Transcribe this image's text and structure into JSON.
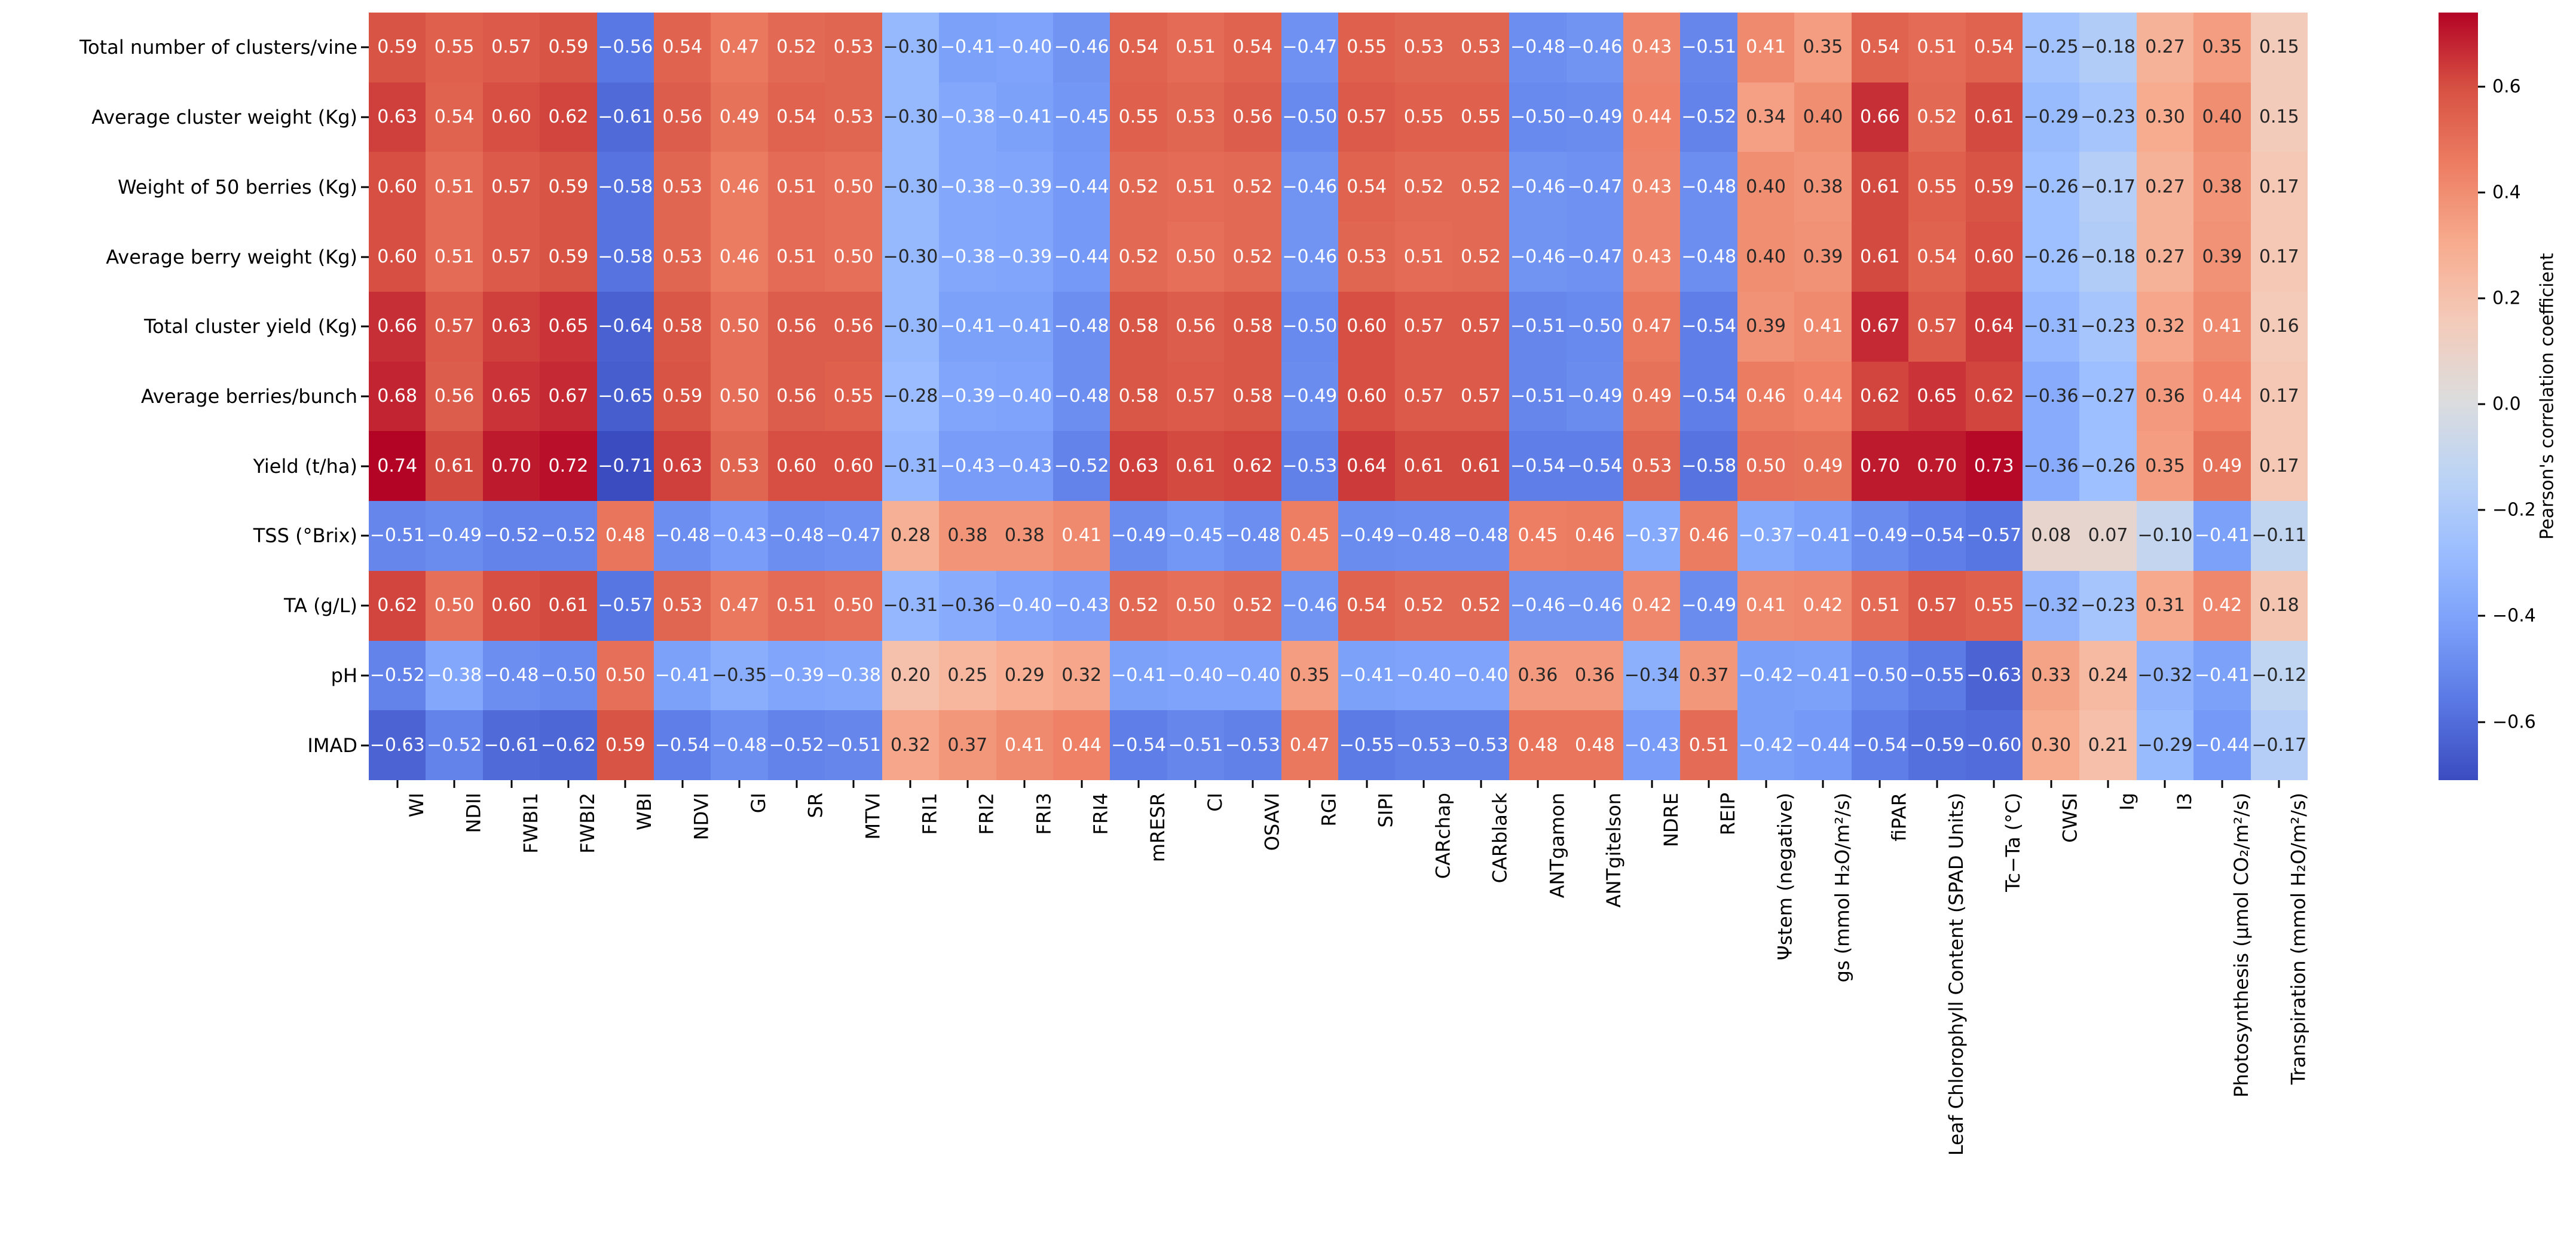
{
  "chart_data": {
    "type": "heatmap",
    "title": "",
    "rows": [
      "Total number of clusters/vine",
      "Average cluster weight (Kg)",
      "Weight of 50 berries (Kg)",
      "Average berry weight (Kg)",
      "Total cluster yield (Kg)",
      "Average berries/bunch",
      "Yield (t/ha)",
      "TSS (°Brix)",
      "TA (g/L)",
      "pH",
      "IMAD"
    ],
    "columns": [
      "WI",
      "NDII",
      "FWBI1",
      "FWBI2",
      "WBI",
      "NDVI",
      "GI",
      "SR",
      "MTVI",
      "FRI1",
      "FRI2",
      "FRI3",
      "FRI4",
      "mRESR",
      "CI",
      "OSAVI",
      "RGI",
      "SIPI",
      "CARchap",
      "CARblack",
      "ANTgamon",
      "ANTgitelson",
      "NDRE",
      "REIP",
      "Ψstem (negative)",
      "gs (mmol H₂O/m²/s)",
      "fiPAR",
      "Leaf Chlorophyll Content (SPAD Units)",
      "Tc−Ta (°C)",
      "CWSI",
      "Ig",
      "I3",
      "Photosynthesis (µmol CO₂/m²/s)",
      "Transpiration (mmol H₂O/m²/s)"
    ],
    "values": [
      [
        0.59,
        0.55,
        0.57,
        0.59,
        -0.56,
        0.54,
        0.47,
        0.52,
        0.53,
        -0.3,
        -0.41,
        -0.4,
        -0.46,
        0.54,
        0.51,
        0.54,
        -0.47,
        0.55,
        0.53,
        0.53,
        -0.48,
        -0.46,
        0.43,
        -0.51,
        0.41,
        0.35,
        0.54,
        0.51,
        0.54,
        -0.25,
        -0.18,
        0.27,
        0.35,
        0.15
      ],
      [
        0.63,
        0.54,
        0.6,
        0.62,
        -0.61,
        0.56,
        0.49,
        0.54,
        0.53,
        -0.3,
        -0.38,
        -0.41,
        -0.45,
        0.55,
        0.53,
        0.56,
        -0.5,
        0.57,
        0.55,
        0.55,
        -0.5,
        -0.49,
        0.44,
        -0.52,
        0.34,
        0.4,
        0.66,
        0.52,
        0.61,
        -0.29,
        -0.23,
        0.3,
        0.4,
        0.15
      ],
      [
        0.6,
        0.51,
        0.57,
        0.59,
        -0.58,
        0.53,
        0.46,
        0.51,
        0.5,
        -0.3,
        -0.38,
        -0.39,
        -0.44,
        0.52,
        0.51,
        0.52,
        -0.46,
        0.54,
        0.52,
        0.52,
        -0.46,
        -0.47,
        0.43,
        -0.48,
        0.4,
        0.38,
        0.61,
        0.55,
        0.59,
        -0.26,
        -0.17,
        0.27,
        0.38,
        0.17
      ],
      [
        0.6,
        0.51,
        0.57,
        0.59,
        -0.58,
        0.53,
        0.46,
        0.51,
        0.5,
        -0.3,
        -0.38,
        -0.39,
        -0.44,
        0.52,
        0.5,
        0.52,
        -0.46,
        0.53,
        0.51,
        0.52,
        -0.46,
        -0.47,
        0.43,
        -0.48,
        0.4,
        0.39,
        0.61,
        0.54,
        0.6,
        -0.26,
        -0.18,
        0.27,
        0.39,
        0.17
      ],
      [
        0.66,
        0.57,
        0.63,
        0.65,
        -0.64,
        0.58,
        0.5,
        0.56,
        0.56,
        -0.3,
        -0.41,
        -0.41,
        -0.48,
        0.58,
        0.56,
        0.58,
        -0.5,
        0.6,
        0.57,
        0.57,
        -0.51,
        -0.5,
        0.47,
        -0.54,
        0.39,
        0.41,
        0.67,
        0.57,
        0.64,
        -0.31,
        -0.23,
        0.32,
        0.41,
        0.16
      ],
      [
        0.68,
        0.56,
        0.65,
        0.67,
        -0.65,
        0.59,
        0.5,
        0.56,
        0.55,
        -0.28,
        -0.39,
        -0.4,
        -0.48,
        0.58,
        0.57,
        0.58,
        -0.49,
        0.6,
        0.57,
        0.57,
        -0.51,
        -0.49,
        0.49,
        -0.54,
        0.46,
        0.44,
        0.62,
        0.65,
        0.62,
        -0.36,
        -0.27,
        0.36,
        0.44,
        0.17
      ],
      [
        0.74,
        0.61,
        0.7,
        0.72,
        -0.71,
        0.63,
        0.53,
        0.6,
        0.6,
        -0.31,
        -0.43,
        -0.43,
        -0.52,
        0.63,
        0.61,
        0.62,
        -0.53,
        0.64,
        0.61,
        0.61,
        -0.54,
        -0.54,
        0.53,
        -0.58,
        0.5,
        0.49,
        0.7,
        0.7,
        0.73,
        -0.36,
        -0.26,
        0.35,
        0.49,
        0.17
      ],
      [
        -0.51,
        -0.49,
        -0.52,
        -0.52,
        0.48,
        -0.48,
        -0.43,
        -0.48,
        -0.47,
        0.28,
        0.38,
        0.38,
        0.41,
        -0.49,
        -0.45,
        -0.48,
        0.45,
        -0.49,
        -0.48,
        -0.48,
        0.45,
        0.46,
        -0.37,
        0.46,
        -0.37,
        -0.41,
        -0.49,
        -0.54,
        -0.57,
        0.08,
        0.07,
        -0.1,
        -0.41,
        -0.11
      ],
      [
        0.62,
        0.5,
        0.6,
        0.61,
        -0.57,
        0.53,
        0.47,
        0.51,
        0.5,
        -0.31,
        -0.36,
        -0.4,
        -0.43,
        0.52,
        0.5,
        0.52,
        -0.46,
        0.54,
        0.52,
        0.52,
        -0.46,
        -0.46,
        0.42,
        -0.49,
        0.41,
        0.42,
        0.51,
        0.57,
        0.55,
        -0.32,
        -0.23,
        0.31,
        0.42,
        0.18
      ],
      [
        -0.52,
        -0.38,
        -0.48,
        -0.5,
        0.5,
        -0.41,
        -0.35,
        -0.39,
        -0.38,
        0.2,
        0.25,
        0.29,
        0.32,
        -0.41,
        -0.4,
        -0.4,
        0.35,
        -0.41,
        -0.4,
        -0.4,
        0.36,
        0.36,
        -0.34,
        0.37,
        -0.42,
        -0.41,
        -0.5,
        -0.55,
        -0.63,
        0.33,
        0.24,
        -0.32,
        -0.41,
        -0.12
      ],
      [
        -0.63,
        -0.52,
        -0.61,
        -0.62,
        0.59,
        -0.54,
        -0.48,
        -0.52,
        -0.51,
        0.32,
        0.37,
        0.41,
        0.44,
        -0.54,
        -0.51,
        -0.53,
        0.47,
        -0.55,
        -0.53,
        -0.53,
        0.48,
        0.48,
        -0.43,
        0.51,
        -0.42,
        -0.44,
        -0.54,
        -0.59,
        -0.6,
        0.3,
        0.21,
        -0.29,
        -0.44,
        -0.17
      ]
    ],
    "value_format": "two decimals, unicode minus",
    "colormap": {
      "name": "coolwarm",
      "anchors": [
        "#3b4cc0",
        "#5977e3",
        "#7a9ff9",
        "#9cbeff",
        "#bdd4f4",
        "#dddcdc",
        "#f4cab8",
        "#f7ab8e",
        "#ed7e63",
        "#d75243",
        "#b40426"
      ]
    },
    "annotation_text_colors": {
      "dark": "#262626",
      "light": "#ffffff",
      "dark_if_value_between": [
        -0.365,
        0.405
      ]
    },
    "colorbar": {
      "label": "Pearson's correlation coefficient",
      "vmin": -0.71,
      "vmax": 0.74,
      "tick_values": [
        0.6,
        0.4,
        0.2,
        0.0,
        -0.2,
        -0.4,
        -0.6
      ],
      "tick_labels": [
        "0.6",
        "0.4",
        "0.2",
        "0.0",
        "−0.2",
        "−0.4",
        "−0.6"
      ],
      "position": "right"
    },
    "grid": "off",
    "background": "#ffffff"
  }
}
